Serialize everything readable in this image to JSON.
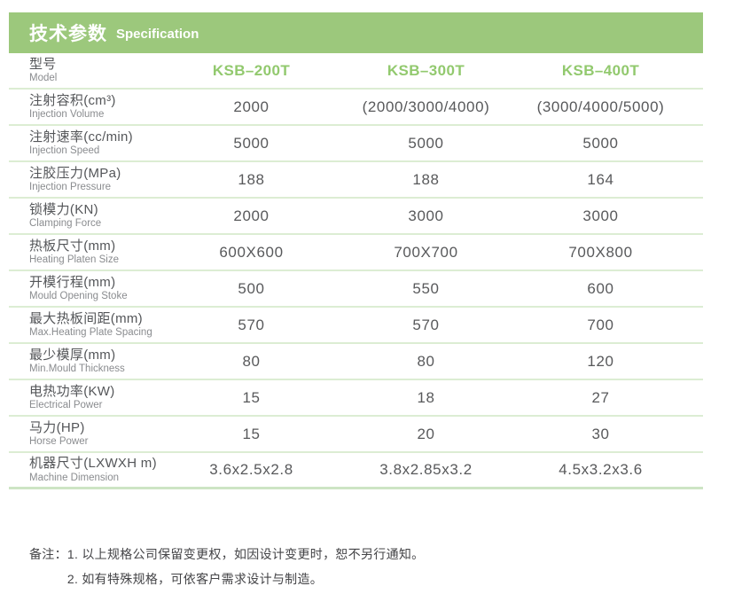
{
  "header": {
    "title_zh": "技术参数",
    "title_en": "Specification"
  },
  "table": {
    "model_row": {
      "label_zh": "型号",
      "label_en": "Model",
      "columns": [
        "KSB–200T",
        "KSB–300T",
        "KSB–400T"
      ]
    },
    "rows": [
      {
        "label_zh": "注射容积(cm³)",
        "label_en": "Injection Volume",
        "values": [
          "2000",
          "(2000/3000/4000)",
          "(3000/4000/5000)"
        ]
      },
      {
        "label_zh": "注射速率(cc/min)",
        "label_en": "Injection Speed",
        "values": [
          "5000",
          "5000",
          "5000"
        ]
      },
      {
        "label_zh": "注胶压力(MPa)",
        "label_en": "Injection Pressure",
        "values": [
          "188",
          "188",
          "164"
        ]
      },
      {
        "label_zh": "锁模力(KN)",
        "label_en": "Clamping Force",
        "values": [
          "2000",
          "3000",
          "3000"
        ]
      },
      {
        "label_zh": "热板尺寸(mm)",
        "label_en": "Heating Platen Size",
        "values": [
          "600X600",
          "700X700",
          "700X800"
        ]
      },
      {
        "label_zh": "开模行程(mm)",
        "label_en": "Mould Opening Stoke",
        "values": [
          "500",
          "550",
          "600"
        ]
      },
      {
        "label_zh": "最大热板间距(mm)",
        "label_en": "Max.Heating Plate Spacing",
        "values": [
          "570",
          "570",
          "700"
        ]
      },
      {
        "label_zh": "最少模厚(mm)",
        "label_en": "Min.Mould Thickness",
        "values": [
          "80",
          "80",
          "120"
        ]
      },
      {
        "label_zh": "电热功率(KW)",
        "label_en": "Electrical Power",
        "values": [
          "15",
          "18",
          "27"
        ]
      },
      {
        "label_zh": "马力(HP)",
        "label_en": "Horse Power",
        "values": [
          "15",
          "20",
          "30"
        ]
      },
      {
        "label_zh": "机器尺寸(LXWXH m)",
        "label_en": "Machine Dimension",
        "values": [
          "3.6x2.5x2.8",
          "3.8x2.85x3.2",
          "4.5x3.2x3.6"
        ]
      }
    ]
  },
  "notes": {
    "prefix": "备注：",
    "items": [
      "1. 以上规格公司保留变更权，如因设计变更时，恕不另行通知。",
      "2. 如有特殊规格，可依客户需求设计与制造。"
    ]
  },
  "colors": {
    "banner_green": "#9cc87c",
    "model_green": "#92c96e",
    "divider_green": "#dcedd3",
    "text_dark": "#58595b",
    "text_gray": "#8a8c8f"
  }
}
